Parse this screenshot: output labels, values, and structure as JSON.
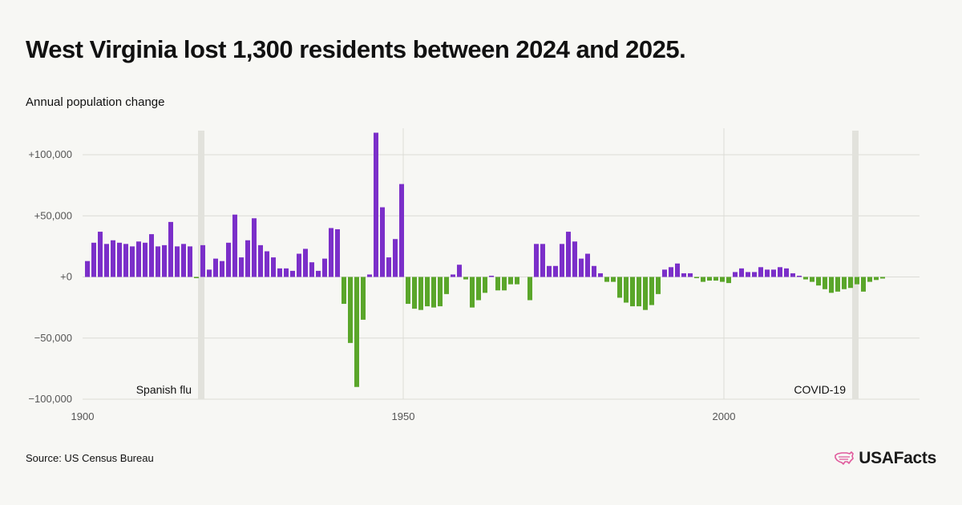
{
  "header": {
    "title": "West Virginia lost 1,300 residents between 2024 and 2025.",
    "subtitle": "Annual population change"
  },
  "footer": {
    "source": "Source: US Census Bureau",
    "brand": "USAFacts",
    "brand_icon": "us-map-icon"
  },
  "colors": {
    "positive": "#7b2fc9",
    "negative": "#5aa62a",
    "grid": "#dcdcd6",
    "annotation_band": "#e2e2dc",
    "brand_icon": "#e05a9c"
  },
  "chart_data": {
    "type": "bar",
    "xlim": [
      1900,
      2030
    ],
    "ylim": [
      -100000,
      120000
    ],
    "grid": true,
    "y_ticks": [
      {
        "value": 100000,
        "label": "+100,000"
      },
      {
        "value": 50000,
        "label": "+50,000"
      },
      {
        "value": 0,
        "label": "+0"
      },
      {
        "value": -50000,
        "label": "−50,000"
      },
      {
        "value": -100000,
        "label": "−100,000"
      }
    ],
    "x_ticks": [
      {
        "value": 1900,
        "label": "1900"
      },
      {
        "value": 1950,
        "label": "1950"
      },
      {
        "value": 2000,
        "label": "2000"
      }
    ],
    "annotations": [
      {
        "x": 1918,
        "label": "Spanish flu"
      },
      {
        "x": 2020,
        "label": "COVID-19"
      }
    ],
    "x": [
      1901,
      1902,
      1903,
      1904,
      1905,
      1906,
      1907,
      1908,
      1909,
      1910,
      1911,
      1912,
      1913,
      1914,
      1915,
      1916,
      1917,
      1918,
      1919,
      1920,
      1921,
      1922,
      1923,
      1924,
      1925,
      1926,
      1927,
      1928,
      1929,
      1930,
      1931,
      1932,
      1933,
      1934,
      1935,
      1936,
      1937,
      1938,
      1939,
      1940,
      1941,
      1942,
      1943,
      1944,
      1945,
      1946,
      1947,
      1948,
      1949,
      1950,
      1951,
      1952,
      1953,
      1954,
      1955,
      1956,
      1957,
      1958,
      1959,
      1960,
      1961,
      1962,
      1963,
      1964,
      1965,
      1966,
      1967,
      1968,
      1969,
      1970,
      1971,
      1972,
      1973,
      1974,
      1975,
      1976,
      1977,
      1978,
      1979,
      1980,
      1981,
      1982,
      1983,
      1984,
      1985,
      1986,
      1987,
      1988,
      1989,
      1990,
      1991,
      1992,
      1993,
      1994,
      1995,
      1996,
      1997,
      1998,
      1999,
      2000,
      2001,
      2002,
      2003,
      2004,
      2005,
      2006,
      2007,
      2008,
      2009,
      2010,
      2011,
      2012,
      2013,
      2014,
      2015,
      2016,
      2017,
      2018,
      2019,
      2020,
      2021,
      2022,
      2023,
      2024,
      2025
    ],
    "values": [
      13000,
      28000,
      37000,
      27000,
      30000,
      28000,
      27000,
      25000,
      29000,
      28000,
      35000,
      25000,
      26000,
      45000,
      25000,
      27000,
      25000,
      -1000,
      26000,
      6000,
      15000,
      13000,
      28000,
      51000,
      16000,
      30000,
      48000,
      26000,
      21000,
      16000,
      7000,
      7000,
      5000,
      19000,
      23000,
      12000,
      5000,
      15000,
      40000,
      39000,
      -22000,
      -54000,
      -90000,
      -35000,
      2000,
      118000,
      57000,
      16000,
      31000,
      76000,
      -22000,
      -26000,
      -27000,
      -24000,
      -25000,
      -24000,
      -14000,
      2000,
      10000,
      -2000,
      -25000,
      -19000,
      -13000,
      1000,
      -11000,
      -11000,
      -6000,
      -6000,
      0,
      -19000,
      27000,
      27000,
      9000,
      9000,
      27000,
      37000,
      29000,
      15000,
      19000,
      9000,
      3000,
      -4000,
      -4000,
      -17000,
      -21000,
      -24000,
      -24000,
      -27000,
      -23000,
      -14000,
      6000,
      8000,
      11000,
      3000,
      3000,
      -1000,
      -4000,
      -3000,
      -3000,
      -4000,
      -5000,
      4000,
      7000,
      4000,
      4000,
      8000,
      6000,
      6000,
      8000,
      7000,
      3000,
      1000,
      -2000,
      -4000,
      -7000,
      -10000,
      -13000,
      -12000,
      -10000,
      -9000,
      -6000,
      -12000,
      -4000,
      -2500,
      -1300
    ]
  }
}
